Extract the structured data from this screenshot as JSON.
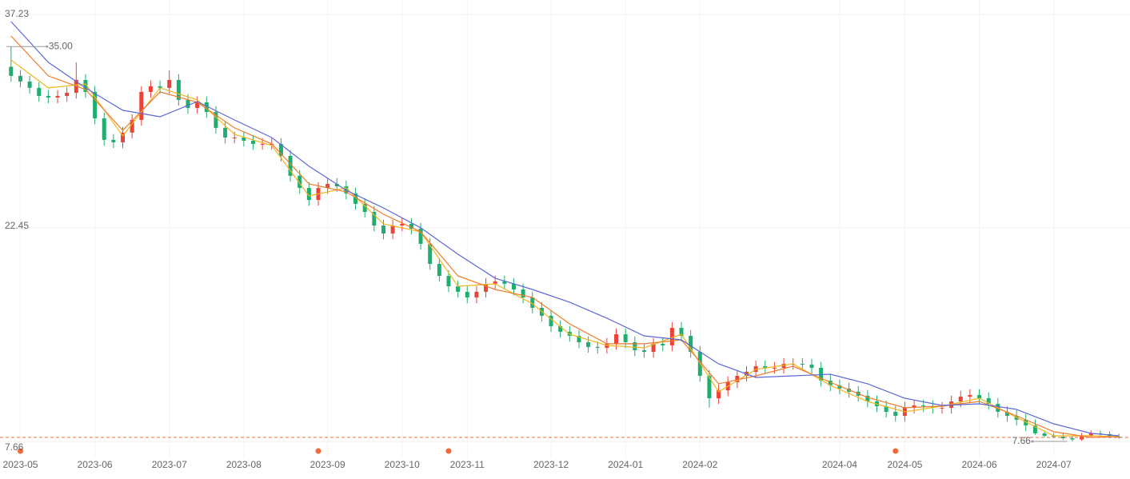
{
  "chart_data": {
    "type": "candlestick",
    "up_color": "#ec4237",
    "down_color": "#1fae6f",
    "open": [
      33.6,
      32.97,
      32.58,
      32.14,
      31.58,
      31.47,
      31.58,
      31.8,
      32.69,
      31.86,
      30.03,
      28.54,
      28.37,
      29.04,
      29.92,
      31.86,
      32.25,
      32.14,
      32.69,
      31.31,
      30.75,
      31.14,
      30.47,
      29.37,
      28.7,
      28.7,
      28.48,
      28.26,
      28.26,
      28.26,
      27.43,
      26.05,
      25.21,
      24.38,
      25.21,
      25.49,
      25.32,
      24.83,
      24.11,
      23.55,
      22.61,
      22.06,
      22.61,
      22.72,
      22.39,
      21.34,
      19.95,
      19.12,
      18.4,
      18.02,
      17.63,
      18.02,
      18.57,
      18.74,
      18.57,
      18.18,
      17.63,
      16.91,
      16.36,
      15.64,
      15.25,
      14.97,
      14.53,
      14.2,
      14.14,
      14.42,
      15.08,
      14.53,
      13.97,
      13.86,
      14.42,
      14.31,
      15.52,
      14.97,
      13.86,
      12.2,
      10.65,
      11.2,
      11.76,
      12.2,
      12.48,
      12.87,
      12.76,
      12.76,
      13.03,
      13.03,
      12.98,
      12.76,
      11.87,
      11.54,
      11.32,
      11.1,
      10.82,
      10.43,
      10.1,
      9.71,
      9.43,
      9.99,
      10.15,
      10.1,
      9.99,
      9.99,
      10.43,
      10.76,
      10.87,
      10.65,
      10.26,
      9.71,
      9.43,
      9.16,
      8.77,
      8.22,
      8.05,
      7.99,
      7.88,
      7.8,
      8.05,
      8.22,
      8.16,
      7.99
    ],
    "high": [
      35.0,
      33.37,
      32.98,
      32.54,
      31.98,
      31.98,
      32.2,
      33.9,
      33.09,
      32.26,
      30.43,
      28.94,
      29.44,
      30.32,
      32.26,
      32.65,
      32.65,
      33.35,
      33.09,
      31.71,
      31.54,
      31.54,
      30.87,
      29.77,
      29.1,
      29.1,
      28.88,
      28.66,
      28.66,
      28.66,
      27.83,
      26.45,
      25.61,
      25.61,
      25.89,
      25.89,
      25.72,
      25.23,
      24.51,
      23.95,
      23.01,
      23.01,
      23.12,
      23.12,
      22.79,
      21.74,
      20.35,
      19.52,
      18.8,
      18.42,
      18.42,
      18.97,
      19.14,
      19.14,
      18.97,
      18.58,
      18.03,
      17.31,
      16.76,
      16.04,
      15.65,
      15.37,
      14.93,
      14.6,
      14.82,
      15.48,
      15.48,
      14.93,
      14.37,
      14.82,
      14.82,
      15.92,
      15.92,
      15.37,
      14.26,
      12.6,
      11.6,
      12.16,
      12.6,
      12.88,
      13.27,
      13.27,
      13.16,
      13.43,
      13.43,
      13.43,
      13.38,
      13.16,
      12.27,
      11.94,
      11.72,
      11.5,
      11.22,
      10.83,
      10.5,
      10.11,
      10.39,
      10.55,
      10.55,
      10.5,
      10.39,
      10.83,
      11.16,
      11.27,
      11.27,
      11.05,
      10.66,
      10.11,
      9.83,
      9.56,
      9.17,
      8.42,
      8.25,
      8.19,
      8.08,
      8.25,
      8.42,
      8.42,
      8.36,
      8.19
    ],
    "low": [
      32.57,
      32.18,
      31.74,
      31.18,
      31.07,
      31.07,
      31.18,
      31.4,
      31.46,
      29.63,
      28.14,
      27.97,
      27.97,
      28.64,
      29.52,
      31.46,
      31.74,
      31.74,
      30.91,
      30.35,
      30.35,
      30.07,
      28.97,
      28.3,
      28.3,
      28.08,
      27.86,
      27.86,
      27.86,
      27.03,
      25.65,
      24.81,
      23.98,
      23.98,
      24.81,
      24.92,
      24.43,
      23.71,
      23.15,
      22.21,
      21.66,
      21.66,
      22.21,
      21.99,
      20.94,
      19.55,
      18.72,
      18.0,
      17.62,
      17.23,
      17.23,
      17.62,
      18.17,
      18.17,
      17.78,
      17.23,
      16.51,
      15.96,
      15.24,
      14.85,
      14.57,
      14.13,
      13.8,
      13.74,
      13.74,
      14.02,
      14.13,
      13.57,
      13.46,
      13.46,
      13.91,
      13.91,
      14.57,
      13.46,
      11.8,
      10.0,
      10.25,
      10.8,
      11.36,
      11.8,
      12.08,
      12.36,
      12.36,
      12.36,
      12.63,
      12.58,
      12.36,
      11.47,
      11.14,
      10.92,
      10.7,
      10.42,
      10.03,
      9.7,
      9.31,
      9.03,
      9.03,
      9.59,
      9.7,
      9.59,
      9.59,
      9.59,
      10.03,
      10.36,
      10.25,
      9.86,
      9.31,
      9.03,
      8.76,
      8.37,
      8.12,
      7.95,
      7.89,
      7.78,
      7.66,
      7.7,
      7.95,
      8.06,
      7.89,
      7.84
    ],
    "close": [
      32.97,
      32.58,
      32.14,
      31.58,
      31.47,
      31.58,
      31.8,
      32.69,
      31.86,
      30.03,
      28.54,
      28.37,
      29.04,
      29.92,
      31.86,
      32.25,
      32.14,
      32.69,
      31.31,
      30.75,
      31.14,
      30.47,
      29.37,
      28.7,
      28.7,
      28.48,
      28.26,
      28.26,
      28.26,
      27.43,
      26.05,
      25.21,
      24.38,
      25.21,
      25.49,
      25.32,
      24.83,
      24.11,
      23.55,
      22.61,
      22.06,
      22.61,
      22.72,
      22.39,
      21.34,
      19.95,
      19.12,
      18.4,
      18.02,
      17.63,
      18.02,
      18.57,
      18.74,
      18.57,
      18.18,
      17.63,
      16.91,
      16.36,
      15.64,
      15.25,
      14.97,
      14.53,
      14.2,
      14.14,
      14.42,
      15.08,
      14.53,
      13.97,
      13.86,
      14.42,
      14.31,
      15.52,
      14.97,
      13.86,
      12.2,
      10.65,
      11.2,
      11.76,
      12.2,
      12.48,
      12.87,
      12.76,
      12.76,
      13.03,
      13.03,
      12.98,
      12.76,
      11.87,
      11.54,
      11.32,
      11.1,
      10.82,
      10.43,
      10.1,
      9.71,
      9.43,
      9.99,
      10.15,
      10.1,
      9.99,
      9.99,
      10.43,
      10.76,
      10.87,
      10.65,
      10.26,
      9.71,
      9.43,
      9.16,
      8.77,
      8.22,
      8.05,
      7.99,
      7.88,
      7.8,
      8.05,
      8.22,
      8.16,
      7.99,
      7.94
    ],
    "ma_x": [
      0,
      4,
      8,
      12,
      16,
      20,
      24,
      28,
      32,
      36,
      40,
      44,
      48,
      52,
      56,
      60,
      64,
      68,
      72,
      76,
      80,
      84,
      88,
      92,
      96,
      100,
      104,
      108,
      112,
      116,
      119
    ],
    "series": [
      {
        "color": "#f2b51c",
        "values": [
          34.07,
          32.14,
          32.41,
          28.81,
          32.14,
          31.31,
          28.92,
          28.15,
          24.66,
          25.21,
          22.72,
          22.17,
          18.4,
          18.57,
          17.19,
          15.08,
          14.31,
          14.14,
          15.08,
          11.1,
          12.65,
          13.03,
          11.54,
          10.43,
          9.71,
          10.1,
          10.65,
          9.32,
          8.05,
          8.05,
          7.99
        ]
      },
      {
        "color": "#f07a2a",
        "values": [
          35.73,
          32.97,
          32.03,
          29.2,
          31.86,
          31.14,
          29.37,
          28.26,
          25.49,
          24.94,
          23.39,
          22.17,
          19.12,
          18.18,
          17.63,
          15.8,
          14.42,
          14.42,
          14.69,
          11.65,
          12.2,
          12.87,
          11.76,
          10.71,
          9.99,
          10.1,
          10.43,
          9.43,
          8.33,
          7.94,
          7.99
        ]
      },
      {
        "color": "#5b68d6",
        "values": [
          36.73,
          33.91,
          32.14,
          30.59,
          30.14,
          31.19,
          29.92,
          28.7,
          26.71,
          25.05,
          23.83,
          22.45,
          20.62,
          18.96,
          18.18,
          17.3,
          16.19,
          14.97,
          14.69,
          13.03,
          12.09,
          12.2,
          12.31,
          11.65,
          10.65,
          10.15,
          10.26,
          9.88,
          8.88,
          8.22,
          8.05
        ]
      }
    ],
    "ylim": [
      6.83,
      37.78
    ],
    "yticks": [
      37.23,
      22.45,
      7.66
    ],
    "xticks": [
      {
        "value": 1,
        "label": "2023-05"
      },
      {
        "value": 9,
        "label": "2023-06"
      },
      {
        "value": 17,
        "label": "2023-07"
      },
      {
        "value": 25,
        "label": "2023-08"
      },
      {
        "value": 34,
        "label": "2023-09"
      },
      {
        "value": 42,
        "label": "2023-10"
      },
      {
        "value": 49,
        "label": "2023-11"
      },
      {
        "value": 58,
        "label": "2023-12"
      },
      {
        "value": 66,
        "label": "2024-01"
      },
      {
        "value": 74,
        "label": "2024-02"
      },
      {
        "value": 89,
        "label": "2024-04"
      },
      {
        "value": 96,
        "label": "2024-05"
      },
      {
        "value": 104,
        "label": "2024-06"
      },
      {
        "value": 112,
        "label": "2024-07"
      }
    ],
    "events": [
      1,
      33,
      47,
      95
    ],
    "event_color": "#f4683c",
    "last_line_color": "#f4683c",
    "annotations": [
      {
        "index": 0,
        "value": 35,
        "label": "35.00",
        "side": "right"
      },
      {
        "index": 114,
        "value": 7.66,
        "label": "7.66",
        "side": "left"
      }
    ],
    "grid": true
  }
}
